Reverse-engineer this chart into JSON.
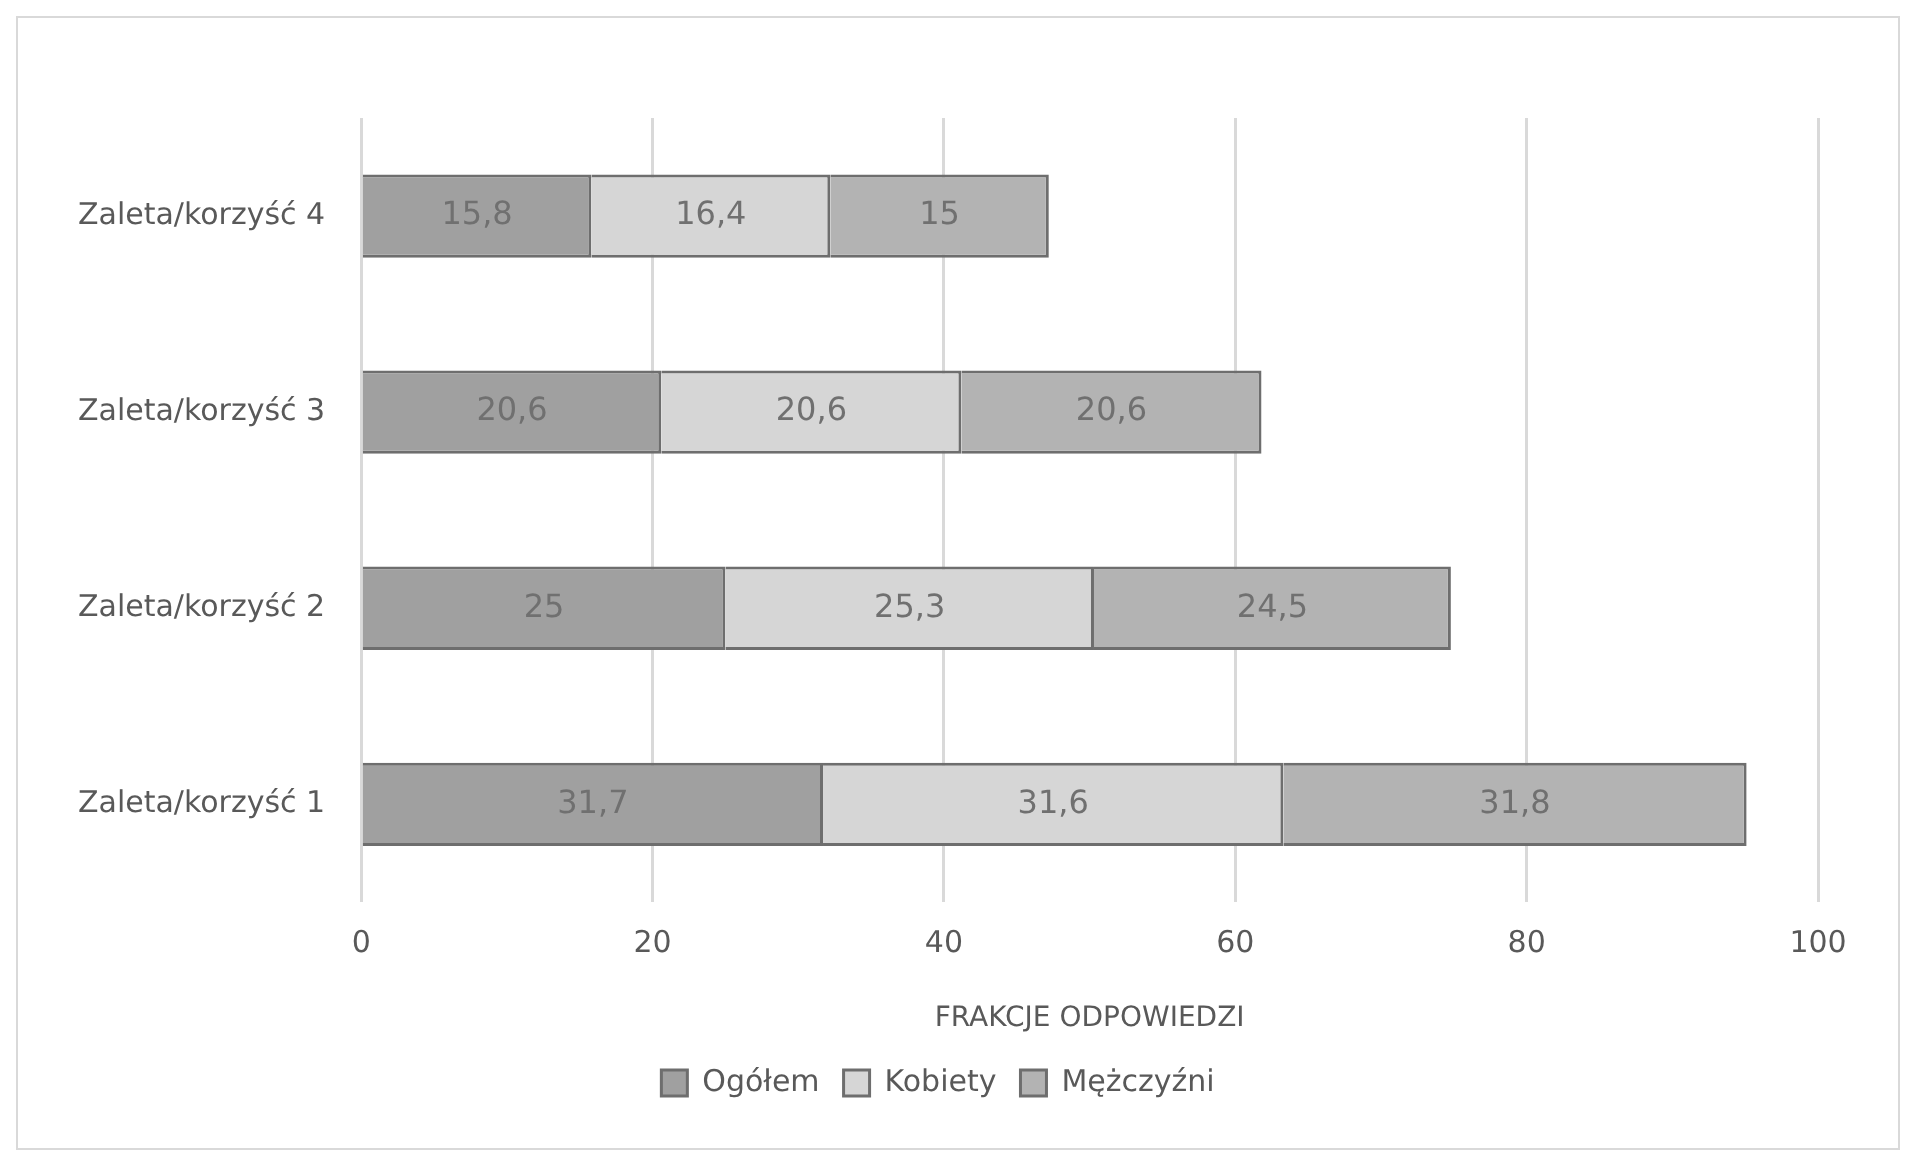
{
  "chart_data": {
    "type": "bar",
    "orientation": "horizontal",
    "stacked": true,
    "xlabel": "FRAKCJE ODPOWIEDZI",
    "categories": [
      "Zaleta/korzyść 4",
      "Zaleta/korzyść 3",
      "Zaleta/korzyść 2",
      "Zaleta/korzyść 1"
    ],
    "series": [
      {
        "name": "Ogółem",
        "color": "#a0a0a0",
        "values": [
          15.8,
          20.6,
          25,
          31.7
        ],
        "value_labels": [
          "15,8",
          "20,6",
          "25",
          "31,7"
        ]
      },
      {
        "name": "Kobiety",
        "color": "#d6d6d6",
        "values": [
          16.4,
          20.6,
          25.3,
          31.6
        ],
        "value_labels": [
          "16,4",
          "20,6",
          "25,3",
          "31,6"
        ]
      },
      {
        "name": "Mężczyźni",
        "color": "#b3b3b3",
        "values": [
          15,
          20.6,
          24.5,
          31.8
        ],
        "value_labels": [
          "15",
          "20,6",
          "24,5",
          "31,8"
        ]
      }
    ],
    "xlim": [
      0,
      100
    ],
    "xticks": [
      0,
      20,
      40,
      60,
      80,
      100
    ],
    "grid": "x",
    "legend": "bottom"
  }
}
